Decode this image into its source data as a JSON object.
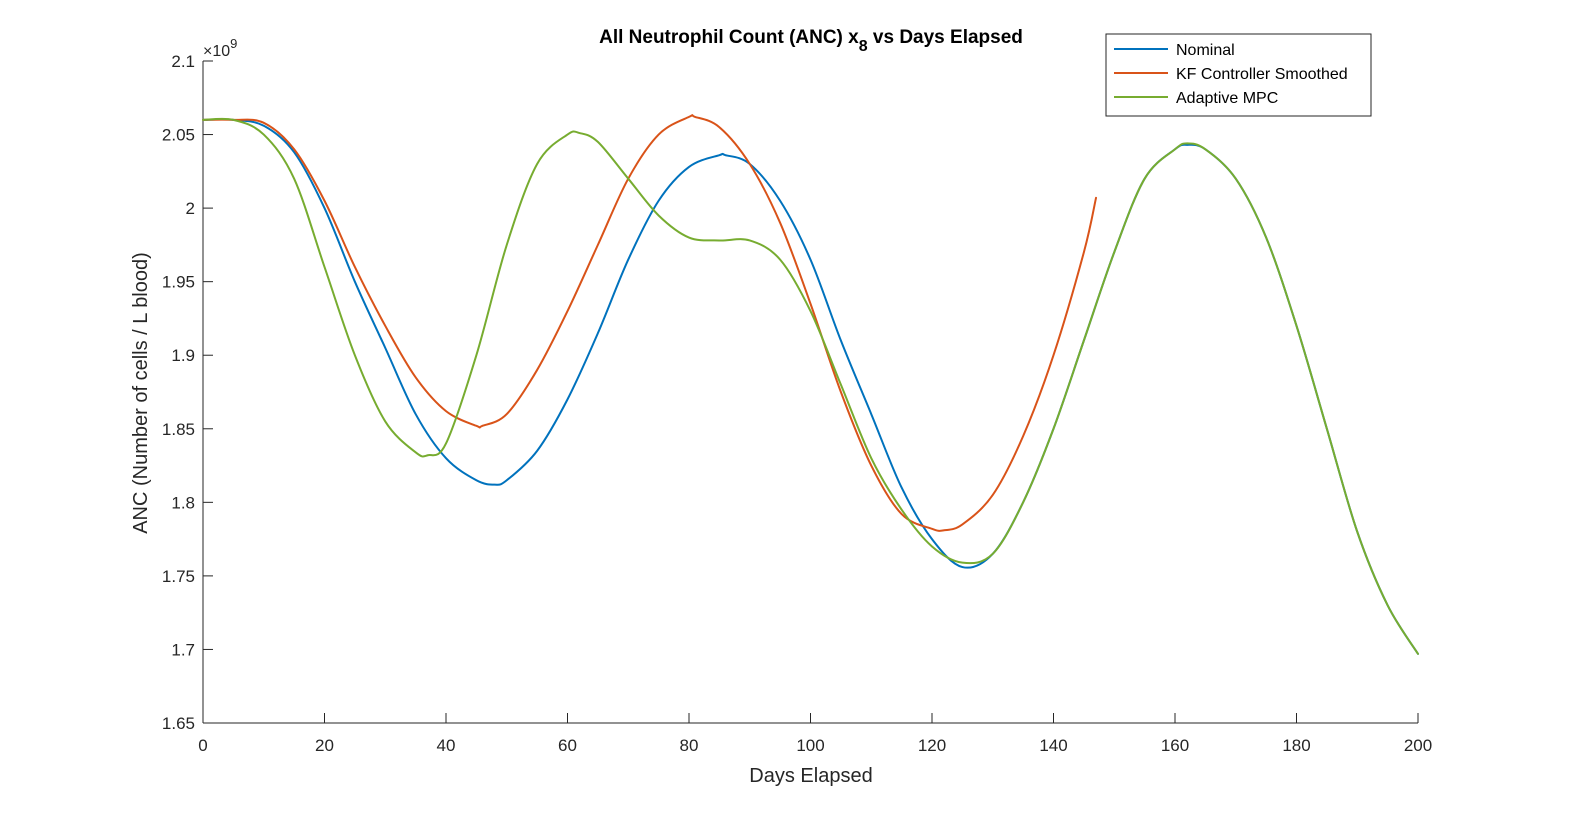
{
  "chart_data": {
    "type": "line",
    "title": "All Neutrophil Count (ANC) x",
    "title_subscript": "8",
    "title_suffix": " vs Days Elapsed",
    "xlabel": "Days Elapsed",
    "ylabel": "ANC (Number of cells / L blood)",
    "y_exponent_base": "×10",
    "y_exponent_power": "9",
    "xlim": [
      0,
      200
    ],
    "ylim": [
      1.65,
      2.1
    ],
    "x_ticks": [
      0,
      20,
      40,
      60,
      80,
      100,
      120,
      140,
      160,
      180,
      200
    ],
    "x_tick_labels": [
      "0",
      "20",
      "40",
      "60",
      "80",
      "100",
      "120",
      "140",
      "160",
      "180",
      "200"
    ],
    "y_ticks": [
      1.65,
      1.7,
      1.75,
      1.8,
      1.85,
      1.9,
      1.95,
      2.0,
      2.05,
      2.1
    ],
    "y_tick_labels": [
      "1.65",
      "1.7",
      "1.75",
      "1.8",
      "1.85",
      "1.9",
      "1.95",
      "2",
      "2.05",
      "2.1"
    ],
    "grid": false,
    "legend_position": "top-right",
    "series": [
      {
        "name": "Nominal",
        "color": "#0072BD",
        "x": [
          0,
          5,
          10,
          15,
          20,
          25,
          30,
          35,
          40,
          45,
          48,
          50,
          55,
          60,
          65,
          70,
          75,
          80,
          85,
          86,
          90,
          95,
          100,
          105,
          110,
          115,
          120,
          125,
          130,
          135,
          140,
          145,
          150,
          155,
          160,
          162,
          165,
          170,
          175,
          180,
          185,
          190,
          195,
          200
        ],
        "y": [
          2.06,
          2.06,
          2.056,
          2.038,
          2.0,
          1.95,
          1.905,
          1.86,
          1.83,
          1.815,
          1.812,
          1.815,
          1.835,
          1.87,
          1.915,
          1.965,
          2.005,
          2.028,
          2.036,
          2.036,
          2.03,
          2.005,
          1.965,
          1.91,
          1.86,
          1.81,
          1.775,
          1.756,
          1.765,
          1.8,
          1.85,
          1.91,
          1.97,
          2.02,
          2.04,
          2.043,
          2.04,
          2.02,
          1.98,
          1.92,
          1.85,
          1.78,
          1.73,
          1.697
        ]
      },
      {
        "name": "KF Controller Smoothed",
        "color": "#D95319",
        "x": [
          0,
          5,
          10,
          15,
          20,
          25,
          30,
          35,
          40,
          45,
          46,
          50,
          55,
          60,
          65,
          70,
          75,
          80,
          81,
          85,
          90,
          95,
          100,
          105,
          110,
          115,
          120,
          122,
          125,
          130,
          135,
          140,
          145,
          147
        ],
        "y": [
          2.06,
          2.06,
          2.058,
          2.04,
          2.005,
          1.96,
          1.92,
          1.885,
          1.862,
          1.852,
          1.852,
          1.86,
          1.89,
          1.93,
          1.975,
          2.02,
          2.05,
          2.062,
          2.062,
          2.055,
          2.03,
          1.99,
          1.935,
          1.875,
          1.825,
          1.792,
          1.782,
          1.781,
          1.785,
          1.805,
          1.845,
          1.9,
          1.97,
          2.007
        ]
      },
      {
        "name": "Adaptive MPC",
        "color": "#77AC30",
        "x": [
          0,
          5,
          10,
          15,
          20,
          25,
          30,
          35,
          37,
          40,
          45,
          50,
          55,
          60,
          62,
          65,
          70,
          75,
          80,
          85,
          90,
          95,
          100,
          105,
          110,
          115,
          120,
          125,
          130,
          135,
          140,
          145,
          150,
          155,
          160,
          162,
          165,
          170,
          175,
          180,
          185,
          190,
          195,
          200
        ],
        "y": [
          2.06,
          2.06,
          2.05,
          2.02,
          1.96,
          1.9,
          1.855,
          1.834,
          1.832,
          1.84,
          1.9,
          1.975,
          2.03,
          2.05,
          2.051,
          2.045,
          2.02,
          1.995,
          1.98,
          1.978,
          1.978,
          1.965,
          1.93,
          1.88,
          1.83,
          1.795,
          1.77,
          1.759,
          1.765,
          1.8,
          1.85,
          1.91,
          1.97,
          2.02,
          2.04,
          2.044,
          2.04,
          2.02,
          1.98,
          1.92,
          1.85,
          1.78,
          1.73,
          1.697
        ]
      }
    ]
  }
}
